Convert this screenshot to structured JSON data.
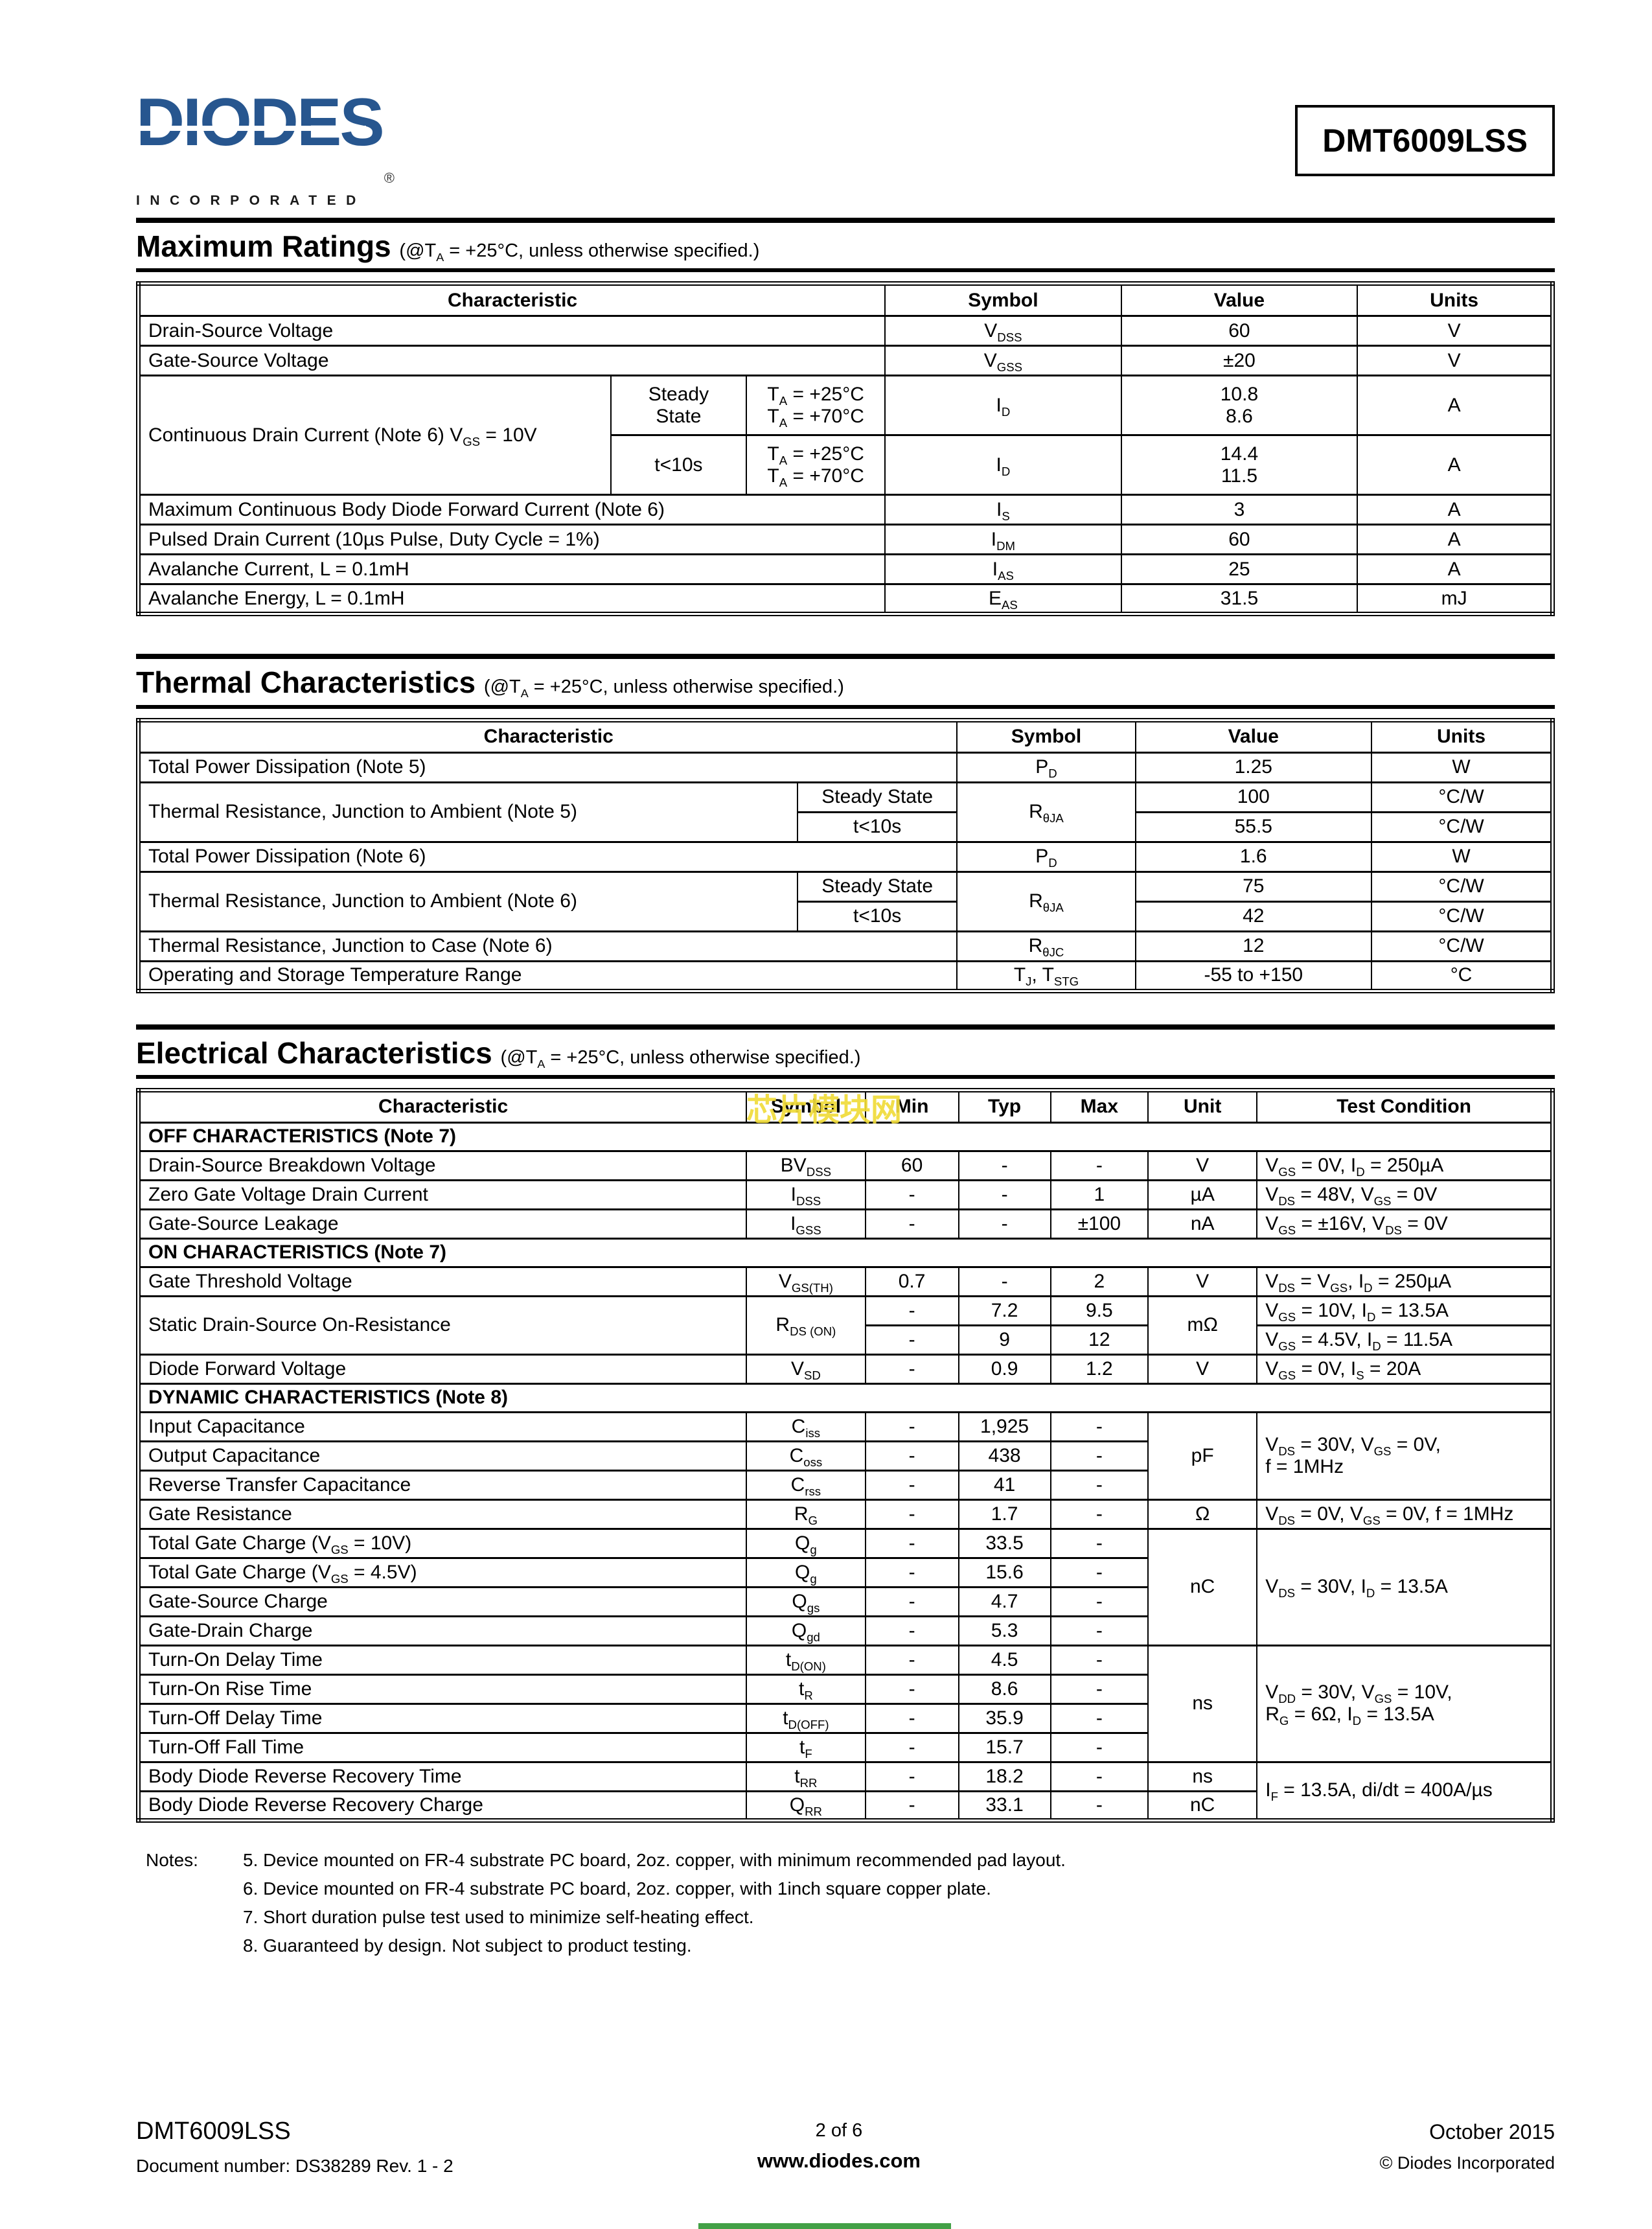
{
  "colors": {
    "logo_blue": "#27568f",
    "watermark_yellow": "#f0dc3a",
    "bottom_bar_green": "#43a047"
  },
  "header": {
    "logo_text": "DIODES",
    "logo_registered": "®",
    "logo_sub": "INCORPORATED",
    "part_number": "DMT6009LSS"
  },
  "watermark_text": "芯片模块网",
  "max_ratings": {
    "title": "Maximum Ratings",
    "subtitle": "(@T~A~ = +25°C, unless otherwise specified.)",
    "headers": {
      "characteristic": "Characteristic",
      "symbol": "Symbol",
      "value": "Value",
      "units": "Units"
    },
    "r_vdss": {
      "char": "Drain-Source Voltage",
      "symbol": "V~DSS~",
      "value": "60",
      "units": "V"
    },
    "r_vgss": {
      "char": "Gate-Source Voltage",
      "symbol": "V~GSS~",
      "value": "±20",
      "units": "V"
    },
    "r_id": {
      "char": "Continuous Drain Current (Note 6) V~GS~ = 10V",
      "g1": {
        "label": "Steady\nState",
        "cond": "T~A~ = +25°C\nT~A~ = +70°C",
        "symbol": "I~D~",
        "value": "10.8\n8.6",
        "units": "A"
      },
      "g2": {
        "label": "t<10s",
        "cond": "T~A~ = +25°C\nT~A~ = +70°C",
        "symbol": "I~D~",
        "value": "14.4\n11.5",
        "units": "A"
      }
    },
    "r_is": {
      "char": "Maximum Continuous Body Diode Forward Current (Note 6)",
      "symbol": "I~S~",
      "value": "3",
      "units": "A"
    },
    "r_idm": {
      "char": "Pulsed Drain Current (10µs Pulse, Duty Cycle = 1%)",
      "symbol": "I~DM~",
      "value": "60",
      "units": "A"
    },
    "r_ias": {
      "char": "Avalanche Current, L = 0.1mH",
      "symbol": "I~AS~",
      "value": "25",
      "units": "A"
    },
    "r_eas": {
      "char": "Avalanche Energy, L = 0.1mH",
      "symbol": "E~AS~",
      "value": "31.5",
      "units": "mJ"
    }
  },
  "thermal": {
    "title": "Thermal Characteristics",
    "subtitle": "(@T~A~ = +25°C, unless otherwise specified.)",
    "headers": {
      "characteristic": "Characteristic",
      "symbol": "Symbol",
      "value": "Value",
      "units": "Units"
    },
    "r_pd5": {
      "char": "Total Power Dissipation (Note 5)",
      "symbol": "P~D~",
      "value": "1.25",
      "units": "W"
    },
    "r_rja5": {
      "char": "Thermal Resistance, Junction to Ambient (Note 5)",
      "sub1": "Steady State",
      "sub2": "t<10s",
      "symbol": "R~θJA~",
      "v1": "100",
      "u1": "°C/W",
      "v2": "55.5",
      "u2": "°C/W"
    },
    "r_pd6": {
      "char": "Total Power Dissipation (Note 6)",
      "symbol": "P~D~",
      "value": "1.6",
      "units": "W"
    },
    "r_rja6": {
      "char": "Thermal Resistance, Junction to Ambient (Note 6)",
      "sub1": "Steady State",
      "sub2": "t<10s",
      "symbol": "R~θJA~",
      "v1": "75",
      "u1": "°C/W",
      "v2": "42",
      "u2": "°C/W"
    },
    "r_rjc": {
      "char": "Thermal Resistance, Junction to Case  (Note 6)",
      "symbol": "R~θJC~",
      "value": "12",
      "units": "°C/W"
    },
    "r_tj": {
      "char": "Operating and Storage Temperature Range",
      "symbol": "T~J~, T~STG~",
      "value": "-55 to +150",
      "units": "°C"
    }
  },
  "electrical": {
    "title": "Electrical Characteristics",
    "subtitle": "(@T~A~ = +25°C, unless otherwise specified.)",
    "headers": {
      "characteristic": "Characteristic",
      "symbol": "Symbol",
      "min": "Min",
      "typ": "Typ",
      "max": "Max",
      "unit": "Unit",
      "cond": "Test Condition"
    },
    "sec_off": "OFF CHARACTERISTICS (Note 7)",
    "sec_on": "ON CHARACTERISTICS (Note 7)",
    "sec_dyn": "DYNAMIC CHARACTERISTICS  (Note 8)",
    "bvdss": {
      "char": "Drain-Source Breakdown Voltage",
      "symbol": "BV~DSS~",
      "min": "60",
      "typ": "-",
      "max": "-",
      "unit": "V",
      "cond": "V~GS~ = 0V, I~D~ = 250µA"
    },
    "idss": {
      "char": "Zero Gate Voltage Drain Current",
      "symbol": "I~DSS~",
      "min": "-",
      "typ": "-",
      "max": "1",
      "unit": "µA",
      "cond": "V~DS~ = 48V, V~GS~ = 0V"
    },
    "igss": {
      "char": "Gate-Source Leakage",
      "symbol": "I~GSS~",
      "min": "-",
      "typ": "-",
      "max": "±100",
      "unit": "nA",
      "cond": "V~GS~ = ±16V, V~DS~ = 0V"
    },
    "vgsth": {
      "char": "Gate Threshold Voltage",
      "symbol": "V~GS(TH)~",
      "min": "0.7",
      "typ": "-",
      "max": "2",
      "unit": "V",
      "cond": "V~DS~ = V~GS~, I~D~ = 250µA"
    },
    "rdson": {
      "char": "Static Drain-Source On-Resistance",
      "symbol": "R~DS (ON)~",
      "unit": "mΩ",
      "min1": "-",
      "typ1": "7.2",
      "max1": "9.5",
      "cond1": "V~GS~ = 10V, I~D~ = 13.5A",
      "min2": "-",
      "typ2": "9",
      "max2": "12",
      "cond2": "V~GS~ = 4.5V, I~D~ = 11.5A"
    },
    "vsd": {
      "char": "Diode Forward Voltage",
      "symbol": "V~SD~",
      "min": "-",
      "typ": "0.9",
      "max": "1.2",
      "unit": "V",
      "cond": "V~GS~ = 0V, I~S~ = 20A"
    },
    "ciss": {
      "char": "Input Capacitance",
      "symbol": "C~iss~",
      "min": "-",
      "typ": "1,925",
      "max": "-",
      "unit": "pF",
      "cond": "V~DS~ = 30V, V~GS~ = 0V,\nf = 1MHz"
    },
    "coss": {
      "char": "Output Capacitance",
      "symbol": "C~oss~",
      "min": "-",
      "typ": "438",
      "max": "-"
    },
    "crss": {
      "char": "Reverse Transfer Capacitance",
      "symbol": "C~rss~",
      "min": "-",
      "typ": "41",
      "max": "-"
    },
    "rg": {
      "char": "Gate Resistance",
      "symbol": "R~G~",
      "min": "-",
      "typ": "1.7",
      "max": "-",
      "unit": "Ω",
      "cond": "V~DS~ = 0V, V~GS~ = 0V, f = 1MHz"
    },
    "qg10": {
      "char": "Total Gate Charge (V~GS~ = 10V)",
      "symbol": "Q~g~",
      "min": "-",
      "typ": "33.5",
      "max": "-",
      "unit": "nC",
      "cond": "V~DS~ = 30V, I~D~ = 13.5A"
    },
    "qg45": {
      "char": "Total Gate Charge (V~GS~ = 4.5V)",
      "symbol": "Q~g~",
      "min": "-",
      "typ": "15.6",
      "max": "-"
    },
    "qgs": {
      "char": "Gate-Source Charge",
      "symbol": "Q~gs~",
      "min": "-",
      "typ": "4.7",
      "max": "-"
    },
    "qgd": {
      "char": "Gate-Drain Charge",
      "symbol": "Q~gd~",
      "min": "-",
      "typ": "5.3",
      "max": "-"
    },
    "tdon": {
      "char": "Turn-On Delay Time",
      "symbol": "t~D(ON)~",
      "min": "-",
      "typ": "4.5",
      "max": "-",
      "unit": "ns",
      "cond": "V~DD~ = 30V, V~GS~ = 10V,\nR~G~ = 6Ω, I~D~ = 13.5A"
    },
    "tr": {
      "char": "Turn-On Rise Time",
      "symbol": "t~R~",
      "min": "-",
      "typ": "8.6",
      "max": "-"
    },
    "tdoff": {
      "char": "Turn-Off Delay Time",
      "symbol": "t~D(OFF)~",
      "min": "-",
      "typ": "35.9",
      "max": "-"
    },
    "tf": {
      "char": "Turn-Off Fall Time",
      "symbol": "t~F~",
      "min": "-",
      "typ": "15.7",
      "max": "-"
    },
    "trr": {
      "char": "Body Diode Reverse Recovery Time",
      "symbol": "t~RR~",
      "min": "-",
      "typ": "18.2",
      "max": "-",
      "unit": "ns",
      "cond": "I~F~ = 13.5A, di/dt = 400A/µs"
    },
    "qrr": {
      "char": "Body Diode Reverse Recovery Charge",
      "symbol": "Q~RR~",
      "min": "-",
      "typ": "33.1",
      "max": "-",
      "unit": "nC"
    }
  },
  "notes": {
    "label": "Notes:",
    "items": [
      "5. Device mounted on FR-4 substrate PC board, 2oz. copper, with minimum recommended pad layout.",
      "6. Device mounted on FR-4 substrate PC board, 2oz. copper, with 1inch square copper plate.",
      "7. Short duration pulse test used to minimize self-heating effect.",
      "8. Guaranteed by design. Not subject to product testing."
    ]
  },
  "footer": {
    "part": "DMT6009LSS",
    "doc": "Document number: DS38289 Rev. 1 - 2",
    "page": "2 of 6",
    "site": "www.diodes.com",
    "date": "October 2015",
    "copyright": "© Diodes Incorporated"
  }
}
